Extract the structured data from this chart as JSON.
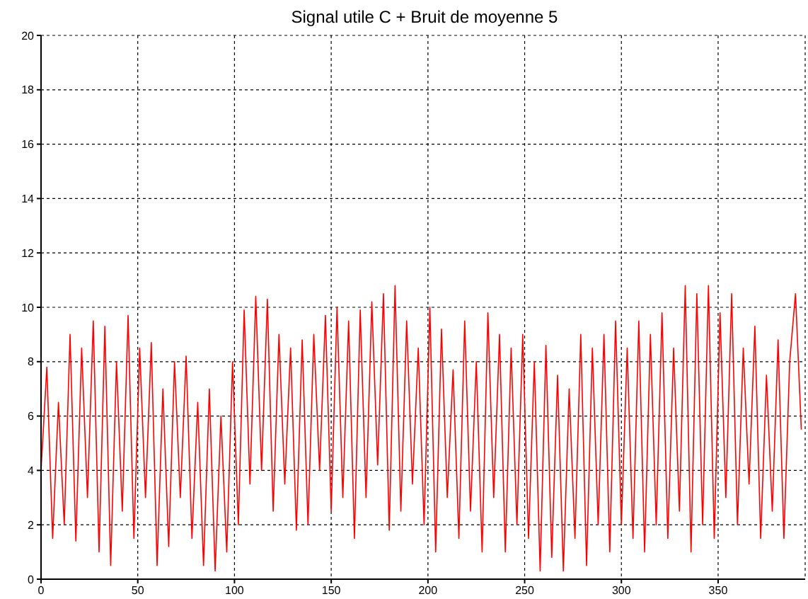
{
  "chart_data": {
    "type": "line",
    "title": "Signal utile C + Bruit de moyenne 5",
    "x": [
      0,
      3,
      6,
      9,
      12,
      15,
      18,
      21,
      24,
      27,
      30,
      33,
      36,
      39,
      42,
      45,
      48,
      51,
      54,
      57,
      60,
      63,
      66,
      69,
      72,
      75,
      78,
      81,
      84,
      87,
      90,
      93,
      96,
      99,
      102,
      105,
      108,
      111,
      114,
      117,
      120,
      123,
      126,
      129,
      132,
      135,
      138,
      141,
      144,
      147,
      150,
      153,
      156,
      159,
      162,
      165,
      168,
      171,
      174,
      177,
      180,
      183,
      186,
      189,
      192,
      195,
      198,
      201,
      204,
      207,
      210,
      213,
      216,
      219,
      222,
      225,
      228,
      231,
      234,
      237,
      240,
      243,
      246,
      249,
      252,
      255,
      258,
      261,
      264,
      267,
      270,
      273,
      276,
      279,
      282,
      285,
      288,
      291,
      294,
      297,
      300,
      303,
      306,
      309,
      312,
      315,
      318,
      321,
      324,
      327,
      330,
      333,
      336,
      339,
      342,
      345,
      348,
      351,
      354,
      357,
      360,
      363,
      366,
      369,
      372,
      375,
      378,
      381,
      384,
      387,
      390,
      393
    ],
    "series": [
      {
        "color": "#ff0000",
        "values": [
          4,
          7.8,
          1.5,
          6.5,
          2,
          9,
          1.4,
          8.5,
          3,
          9.5,
          1,
          9.3,
          0.5,
          8,
          2.5,
          9.7,
          1.5,
          8.5,
          3,
          8.7,
          0.5,
          7,
          1.2,
          8,
          3,
          8.2,
          1.5,
          6.5,
          0.5,
          7,
          0.3,
          6,
          1,
          8,
          2,
          9.9,
          3.5,
          10.4,
          4,
          10.3,
          2.5,
          9,
          3.5,
          8.5,
          1.8,
          8.8,
          2,
          9,
          4,
          9.7,
          2.5,
          10,
          3,
          9.5,
          1.5,
          9.9,
          3,
          10.2,
          4.2,
          10.5,
          1.8,
          10.8,
          2.5,
          9.5,
          3.5,
          8.5,
          2,
          10,
          1,
          9.2,
          3,
          7.7,
          1.5,
          9.5,
          2.5,
          8,
          1,
          9.8,
          3,
          9,
          1,
          8.5,
          2,
          9,
          1.5,
          8,
          0.3,
          8.6,
          0.8,
          7.5,
          0.3,
          7,
          1.5,
          9,
          0.5,
          8.5,
          2,
          9,
          1,
          9.5,
          2,
          8.5,
          1.5,
          9.5,
          1,
          9,
          2,
          9.8,
          1.5,
          8.5,
          2.5,
          10.8,
          1,
          10.5,
          2,
          10.8,
          1.5,
          9.8,
          3,
          10.5,
          2,
          8.5,
          3.5,
          9.3,
          1.5,
          7.5,
          2.5,
          8.8,
          1.5,
          8,
          10.5,
          5.5
        ]
      }
    ],
    "xlim": [
      0,
      395
    ],
    "xticks": [
      0,
      50,
      100,
      150,
      200,
      250,
      300,
      350
    ],
    "ylim": [
      0,
      20
    ],
    "yticks": [
      0,
      2,
      4,
      6,
      8,
      10,
      12,
      14,
      16,
      18,
      20
    ],
    "grid": true,
    "legend": false
  }
}
